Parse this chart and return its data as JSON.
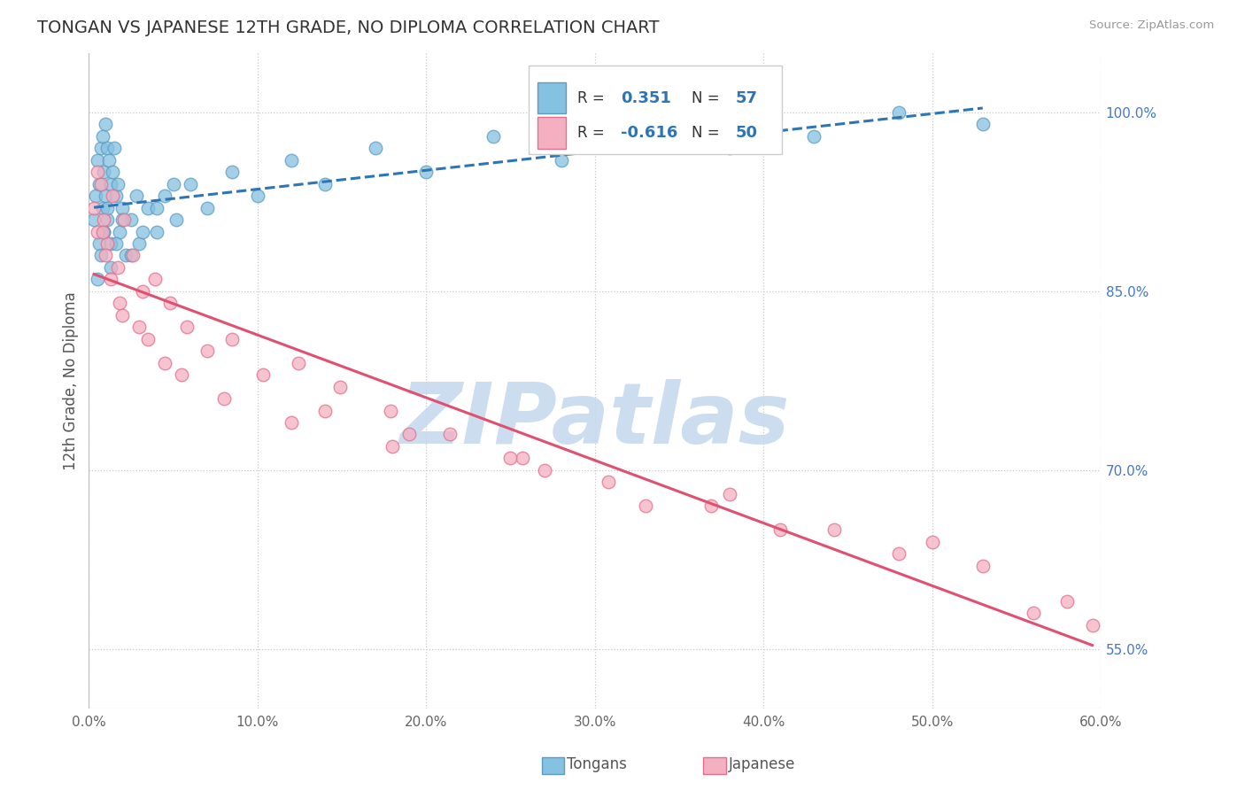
{
  "title": "TONGAN VS JAPANESE 12TH GRADE, NO DIPLOMA CORRELATION CHART",
  "source_text": "Source: ZipAtlas.com",
  "ylabel": "12th Grade, No Diploma",
  "x_tick_labels": [
    "0.0%",
    "10.0%",
    "20.0%",
    "30.0%",
    "40.0%",
    "50.0%",
    "60.0%"
  ],
  "x_tick_vals": [
    0.0,
    10.0,
    20.0,
    30.0,
    40.0,
    50.0,
    60.0
  ],
  "y_tick_labels": [
    "55.0%",
    "70.0%",
    "85.0%",
    "100.0%"
  ],
  "y_tick_vals": [
    55.0,
    70.0,
    85.0,
    100.0
  ],
  "xlim": [
    0.0,
    60.0
  ],
  "ylim": [
    50.0,
    105.0
  ],
  "tongan_color": "#85c1e0",
  "japanese_color": "#f4afc0",
  "tongan_edge": "#5b9cc4",
  "japanese_edge": "#e07090",
  "trend_tongan_color": "#2e75b6",
  "trend_japanese_color": "#e05070",
  "trend_tongan_style": "--",
  "trend_japanese_style": "-",
  "legend_R_tongan": "0.351",
  "legend_N_tongan": "57",
  "legend_R_japanese": "-0.616",
  "legend_N_japanese": "50",
  "grid_color": "#c8c8c8",
  "grid_style": ":",
  "watermark_text": "ZIPatlas",
  "watermark_color": "#c5d8ee",
  "bottom_legend_labels": [
    "Tongans",
    "Japanese"
  ],
  "tongan_x": [
    0.3,
    0.4,
    0.5,
    0.6,
    0.6,
    0.7,
    0.8,
    0.8,
    0.9,
    0.9,
    1.0,
    1.0,
    1.1,
    1.1,
    1.2,
    1.3,
    1.3,
    1.4,
    1.5,
    1.6,
    1.7,
    1.8,
    2.0,
    2.2,
    2.5,
    2.8,
    3.0,
    3.5,
    4.0,
    4.5,
    5.2,
    6.0,
    7.0,
    8.5,
    10.0,
    12.0,
    14.0,
    17.0,
    20.0,
    24.0,
    28.0,
    33.0,
    38.0,
    43.0,
    48.0,
    53.0,
    0.5,
    0.7,
    0.9,
    1.1,
    1.3,
    1.6,
    2.0,
    2.5,
    3.2,
    4.0,
    5.0
  ],
  "tongan_y": [
    91.0,
    93.0,
    96.0,
    94.0,
    89.0,
    97.0,
    92.0,
    98.0,
    95.0,
    90.0,
    99.0,
    93.0,
    97.0,
    91.0,
    96.0,
    94.0,
    89.0,
    95.0,
    97.0,
    93.0,
    94.0,
    90.0,
    92.0,
    88.0,
    91.0,
    93.0,
    89.0,
    92.0,
    90.0,
    93.0,
    91.0,
    94.0,
    92.0,
    95.0,
    93.0,
    96.0,
    94.0,
    97.0,
    95.0,
    98.0,
    96.0,
    99.0,
    97.0,
    98.0,
    100.0,
    99.0,
    86.0,
    88.0,
    90.0,
    92.0,
    87.0,
    89.0,
    91.0,
    88.0,
    90.0,
    92.0,
    94.0
  ],
  "japanese_x": [
    0.3,
    0.5,
    0.7,
    0.9,
    1.1,
    1.4,
    1.7,
    2.1,
    2.6,
    3.2,
    3.9,
    4.8,
    5.8,
    7.0,
    8.5,
    10.3,
    12.4,
    14.9,
    17.9,
    21.4,
    25.7,
    30.8,
    36.9,
    44.2,
    53.0,
    1.0,
    1.8,
    3.0,
    4.5,
    0.5,
    0.8,
    1.3,
    2.0,
    3.5,
    5.5,
    8.0,
    12.0,
    18.0,
    27.0,
    38.0,
    50.0,
    58.0,
    59.5,
    56.0,
    48.0,
    41.0,
    33.0,
    25.0,
    19.0,
    14.0
  ],
  "japanese_y": [
    92.0,
    90.0,
    94.0,
    91.0,
    89.0,
    93.0,
    87.0,
    91.0,
    88.0,
    85.0,
    86.0,
    84.0,
    82.0,
    80.0,
    81.0,
    78.0,
    79.0,
    77.0,
    75.0,
    73.0,
    71.0,
    69.0,
    67.0,
    65.0,
    62.0,
    88.0,
    84.0,
    82.0,
    79.0,
    95.0,
    90.0,
    86.0,
    83.0,
    81.0,
    78.0,
    76.0,
    74.0,
    72.0,
    70.0,
    68.0,
    64.0,
    59.0,
    57.0,
    58.0,
    63.0,
    65.0,
    67.0,
    71.0,
    73.0,
    75.0
  ]
}
